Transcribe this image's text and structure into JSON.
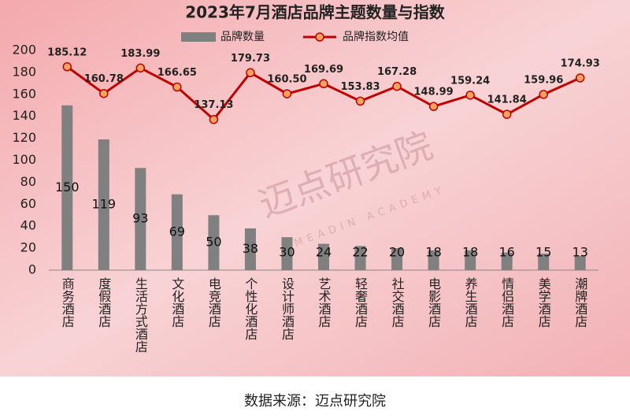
{
  "chart_data": {
    "type": "bar",
    "title": "2023年7月酒店品牌主题数量与指数",
    "categories": [
      "商务酒店",
      "度假酒店",
      "生活方式酒店",
      "文化酒店",
      "电竞酒店",
      "个性化酒店",
      "设计师酒店",
      "艺术酒店",
      "轻奢酒店",
      "社交酒店",
      "电影酒店",
      "养生酒店",
      "情侣酒店",
      "美学酒店",
      "潮牌酒店"
    ],
    "series": [
      {
        "name": "品牌数量",
        "type": "bar",
        "color": "#808080",
        "values": [
          150,
          119,
          93,
          69,
          50,
          38,
          30,
          24,
          22,
          20,
          18,
          18,
          16,
          15,
          13
        ]
      },
      {
        "name": "品牌指数均值",
        "type": "line",
        "color": "#c00000",
        "marker_color": "#f4a460",
        "values": [
          185.12,
          160.78,
          183.99,
          166.65,
          137.13,
          179.73,
          160.5,
          169.69,
          153.83,
          167.28,
          148.99,
          159.24,
          141.84,
          159.96,
          174.93
        ],
        "value_labels": [
          "185.12",
          "160.78",
          "183.99",
          "166.65",
          "137.13",
          "179.73",
          "160.50",
          "169.69",
          "153.83",
          "167.28",
          "148.99",
          "159.24",
          "141.84",
          "159.96",
          "174.93"
        ]
      }
    ],
    "ylim": [
      0,
      200
    ],
    "yticks": [
      0,
      20,
      40,
      60,
      80,
      100,
      120,
      140,
      160,
      180,
      200
    ],
    "grid": false,
    "watermark": "迈点研究院",
    "watermark_sub": "MEADIN ACADEMY",
    "source": "数据来源：迈点研究院"
  }
}
